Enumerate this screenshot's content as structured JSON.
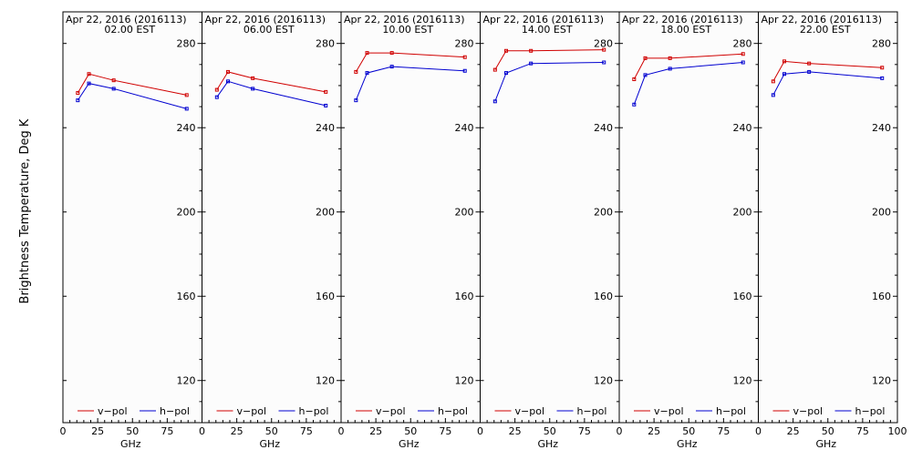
{
  "figure": {
    "ylabel": "Brightness Temperature, Deg K",
    "xlabel": "GHz"
  },
  "legend": {
    "v_label": "v−pol",
    "h_label": "h−pol"
  },
  "colors": {
    "v_pol": "#d00000",
    "h_pol": "#0000d0",
    "panel_bg": "#fcfcfc"
  },
  "chart_data": [
    {
      "type": "line",
      "title": "Apr 22, 2016 (2016113)",
      "subtitle": "02.00 EST",
      "xlabel": "GHz",
      "ylabel": "Brightness Temperature, Deg K",
      "xlim": [
        0,
        100
      ],
      "ylim": [
        100,
        295
      ],
      "x_ticks": [
        "0",
        "25",
        "50",
        "75"
      ],
      "y_ticks": [
        "120",
        "160",
        "200",
        "240",
        "280"
      ],
      "series": [
        {
          "name": "v−pol",
          "x": [
            10.7,
            18.7,
            36.5,
            89.0
          ],
          "y": [
            256.5,
            265.5,
            262.5,
            255.5
          ]
        },
        {
          "name": "h−pol",
          "x": [
            10.7,
            18.7,
            36.5,
            89.0
          ],
          "y": [
            253.0,
            261.0,
            258.5,
            249.0
          ]
        }
      ]
    },
    {
      "type": "line",
      "title": "Apr 22, 2016 (2016113)",
      "subtitle": "06.00 EST",
      "xlabel": "GHz",
      "ylabel": "Brightness Temperature, Deg K",
      "xlim": [
        0,
        100
      ],
      "ylim": [
        100,
        295
      ],
      "x_ticks": [
        "0",
        "25",
        "50",
        "75"
      ],
      "y_ticks": [
        "120",
        "160",
        "200",
        "240",
        "280"
      ],
      "series": [
        {
          "name": "v−pol",
          "x": [
            10.7,
            18.7,
            36.5,
            89.0
          ],
          "y": [
            258.0,
            266.5,
            263.5,
            257.0
          ]
        },
        {
          "name": "h−pol",
          "x": [
            10.7,
            18.7,
            36.5,
            89.0
          ],
          "y": [
            254.5,
            262.0,
            258.5,
            250.5
          ]
        }
      ]
    },
    {
      "type": "line",
      "title": "Apr 22, 2016 (2016113)",
      "subtitle": "10.00 EST",
      "xlabel": "GHz",
      "ylabel": "Brightness Temperature, Deg K",
      "xlim": [
        0,
        100
      ],
      "ylim": [
        100,
        295
      ],
      "x_ticks": [
        "0",
        "25",
        "50",
        "75"
      ],
      "y_ticks": [
        "120",
        "160",
        "200",
        "240",
        "280"
      ],
      "series": [
        {
          "name": "v−pol",
          "x": [
            10.7,
            18.7,
            36.5,
            89.0
          ],
          "y": [
            266.5,
            275.5,
            275.5,
            273.5
          ]
        },
        {
          "name": "h−pol",
          "x": [
            10.7,
            18.7,
            36.5,
            89.0
          ],
          "y": [
            253.0,
            266.0,
            269.0,
            267.0
          ]
        }
      ]
    },
    {
      "type": "line",
      "title": "Apr 22, 2016 (2016113)",
      "subtitle": "14.00 EST",
      "xlabel": "GHz",
      "ylabel": "Brightness Temperature, Deg K",
      "xlim": [
        0,
        100
      ],
      "ylim": [
        100,
        295
      ],
      "x_ticks": [
        "0",
        "25",
        "50",
        "75"
      ],
      "y_ticks": [
        "120",
        "160",
        "200",
        "240",
        "280"
      ],
      "series": [
        {
          "name": "v−pol",
          "x": [
            10.7,
            18.7,
            36.5,
            89.0
          ],
          "y": [
            267.5,
            276.5,
            276.5,
            277.0
          ]
        },
        {
          "name": "h−pol",
          "x": [
            10.7,
            18.7,
            36.5,
            89.0
          ],
          "y": [
            252.5,
            266.0,
            270.5,
            271.0
          ]
        }
      ]
    },
    {
      "type": "line",
      "title": "Apr 22, 2016 (2016113)",
      "subtitle": "18.00 EST",
      "xlabel": "GHz",
      "ylabel": "Brightness Temperature, Deg K",
      "xlim": [
        0,
        100
      ],
      "ylim": [
        100,
        295
      ],
      "x_ticks": [
        "0",
        "25",
        "50",
        "75"
      ],
      "y_ticks": [
        "120",
        "160",
        "200",
        "240",
        "280"
      ],
      "series": [
        {
          "name": "v−pol",
          "x": [
            10.7,
            18.7,
            36.5,
            89.0
          ],
          "y": [
            263.0,
            273.0,
            273.0,
            275.0
          ]
        },
        {
          "name": "h−pol",
          "x": [
            10.7,
            18.7,
            36.5,
            89.0
          ],
          "y": [
            251.0,
            265.0,
            268.0,
            271.0
          ]
        }
      ]
    },
    {
      "type": "line",
      "title": "Apr 22, 2016 (2016113)",
      "subtitle": "22.00 EST",
      "xlabel": "GHz",
      "ylabel": "Brightness Temperature, Deg K",
      "xlim": [
        0,
        100
      ],
      "ylim": [
        100,
        295
      ],
      "x_ticks": [
        "0",
        "25",
        "50",
        "75",
        "100"
      ],
      "y_ticks": [
        "120",
        "160",
        "200",
        "240",
        "280"
      ],
      "series": [
        {
          "name": "v−pol",
          "x": [
            10.7,
            18.7,
            36.5,
            89.0
          ],
          "y": [
            262.0,
            271.5,
            270.5,
            268.5
          ]
        },
        {
          "name": "h−pol",
          "x": [
            10.7,
            18.7,
            36.5,
            89.0
          ],
          "y": [
            255.5,
            265.5,
            266.5,
            263.5
          ]
        }
      ]
    }
  ]
}
